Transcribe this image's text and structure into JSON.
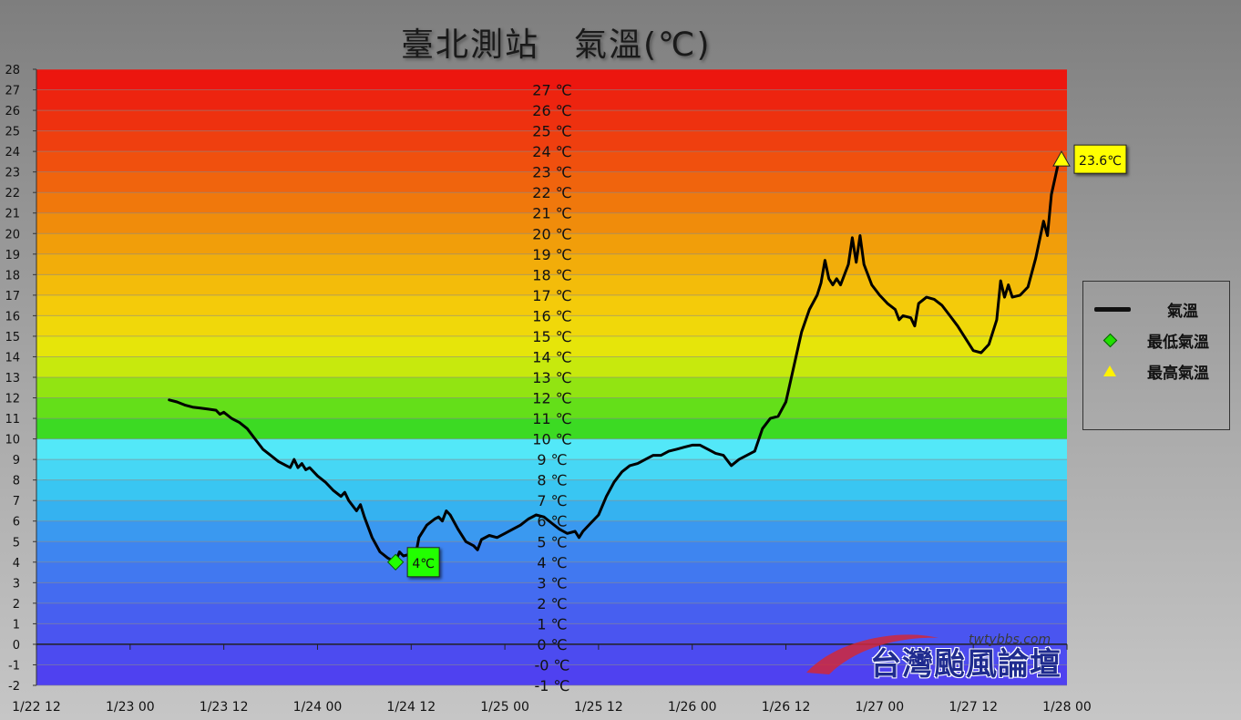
{
  "chart_data": {
    "type": "line",
    "title": "臺北測站　氣溫(℃)",
    "ylim": [
      -2,
      28
    ],
    "yticks": [
      "-2",
      "-1",
      "0",
      "1",
      "2",
      "3",
      "4",
      "5",
      "6",
      "7",
      "8",
      "9",
      "10",
      "11",
      "12",
      "13",
      "14",
      "15",
      "16",
      "17",
      "18",
      "19",
      "20",
      "21",
      "22",
      "23",
      "24",
      "25",
      "26",
      "27",
      "28"
    ],
    "band_labels": [
      "27 ℃",
      "26 ℃",
      "25 ℃",
      "24 ℃",
      "23 ℃",
      "22 ℃",
      "21 ℃",
      "20 ℃",
      "19 ℃",
      "18 ℃",
      "17 ℃",
      "16 ℃",
      "15 ℃",
      "14 ℃",
      "13 ℃",
      "12 ℃",
      "11 ℃",
      "10 ℃",
      "9 ℃",
      "8 ℃",
      "7 ℃",
      "6 ℃",
      "5 ℃",
      "4 ℃",
      "3 ℃",
      "2 ℃",
      "1 ℃",
      "0 ℃",
      "-0 ℃",
      "-1 ℃"
    ],
    "xticks": [
      "1/22 12",
      "1/23 00",
      "1/23 12",
      "1/24 00",
      "1/24 12",
      "1/25 00",
      "1/25 12",
      "1/26 00",
      "1/26 12",
      "1/27 00",
      "1/27 12",
      "1/28 00"
    ],
    "xlim_hours": [
      0,
      132
    ],
    "series": [
      {
        "name": "氣溫",
        "color": "#000000",
        "points": [
          [
            17,
            11.9
          ],
          [
            18,
            11.8
          ],
          [
            19,
            11.65
          ],
          [
            20,
            11.55
          ],
          [
            21,
            11.5
          ],
          [
            22,
            11.45
          ],
          [
            23,
            11.4
          ],
          [
            23.5,
            11.2
          ],
          [
            24,
            11.3
          ],
          [
            25,
            11.0
          ],
          [
            26,
            10.8
          ],
          [
            27,
            10.5
          ],
          [
            28,
            10.0
          ],
          [
            29,
            9.5
          ],
          [
            30,
            9.2
          ],
          [
            31,
            8.9
          ],
          [
            32,
            8.7
          ],
          [
            32.5,
            8.6
          ],
          [
            33,
            9.0
          ],
          [
            33.5,
            8.6
          ],
          [
            34,
            8.8
          ],
          [
            34.5,
            8.5
          ],
          [
            35,
            8.6
          ],
          [
            36,
            8.2
          ],
          [
            37,
            7.9
          ],
          [
            38,
            7.5
          ],
          [
            39,
            7.2
          ],
          [
            39.5,
            7.4
          ],
          [
            40,
            7.0
          ],
          [
            41,
            6.5
          ],
          [
            41.5,
            6.8
          ],
          [
            42,
            6.2
          ],
          [
            43,
            5.2
          ],
          [
            44,
            4.5
          ],
          [
            45,
            4.2
          ],
          [
            46,
            4.0
          ],
          [
            46.5,
            4.5
          ],
          [
            47,
            4.3
          ],
          [
            48,
            4.4
          ],
          [
            48.5,
            4.2
          ],
          [
            49,
            5.2
          ],
          [
            50,
            5.8
          ],
          [
            51,
            6.1
          ],
          [
            51.5,
            6.2
          ],
          [
            52,
            6.0
          ],
          [
            52.5,
            6.5
          ],
          [
            53,
            6.3
          ],
          [
            54,
            5.6
          ],
          [
            55,
            5.0
          ],
          [
            56,
            4.8
          ],
          [
            56.5,
            4.6
          ],
          [
            57,
            5.1
          ],
          [
            58,
            5.3
          ],
          [
            59,
            5.2
          ],
          [
            60,
            5.4
          ],
          [
            61,
            5.6
          ],
          [
            62,
            5.8
          ],
          [
            63,
            6.1
          ],
          [
            64,
            6.3
          ],
          [
            65,
            6.2
          ],
          [
            66,
            5.9
          ],
          [
            67,
            5.6
          ],
          [
            68,
            5.4
          ],
          [
            69,
            5.5
          ],
          [
            69.5,
            5.2
          ],
          [
            70,
            5.5
          ],
          [
            71,
            5.9
          ],
          [
            72,
            6.3
          ],
          [
            73,
            7.2
          ],
          [
            74,
            7.9
          ],
          [
            75,
            8.4
          ],
          [
            76,
            8.7
          ],
          [
            77,
            8.8
          ],
          [
            78,
            9.0
          ],
          [
            79,
            9.2
          ],
          [
            80,
            9.2
          ],
          [
            81,
            9.4
          ],
          [
            82,
            9.5
          ],
          [
            83,
            9.6
          ],
          [
            84,
            9.7
          ],
          [
            85,
            9.7
          ],
          [
            86,
            9.5
          ],
          [
            87,
            9.3
          ],
          [
            88,
            9.2
          ],
          [
            89,
            8.7
          ],
          [
            90,
            9.0
          ],
          [
            91,
            9.2
          ],
          [
            92,
            9.4
          ],
          [
            93,
            10.5
          ],
          [
            94,
            11.0
          ],
          [
            95,
            11.1
          ],
          [
            96,
            11.8
          ],
          [
            97,
            13.5
          ],
          [
            98,
            15.2
          ],
          [
            99,
            16.3
          ],
          [
            100,
            17.0
          ],
          [
            100.5,
            17.6
          ],
          [
            101,
            18.7
          ],
          [
            101.5,
            17.8
          ],
          [
            102,
            17.5
          ],
          [
            102.5,
            17.8
          ],
          [
            103,
            17.5
          ],
          [
            104,
            18.5
          ],
          [
            104.5,
            19.8
          ],
          [
            105,
            18.6
          ],
          [
            105.5,
            19.9
          ],
          [
            106,
            18.5
          ],
          [
            107,
            17.5
          ],
          [
            108,
            17.0
          ],
          [
            109,
            16.6
          ],
          [
            110,
            16.3
          ],
          [
            110.5,
            15.8
          ],
          [
            111,
            16.0
          ],
          [
            112,
            15.9
          ],
          [
            112.5,
            15.5
          ],
          [
            113,
            16.6
          ],
          [
            114,
            16.9
          ],
          [
            115,
            16.8
          ],
          [
            116,
            16.5
          ],
          [
            117,
            16.0
          ],
          [
            118,
            15.5
          ],
          [
            119,
            14.9
          ],
          [
            120,
            14.3
          ],
          [
            121,
            14.2
          ],
          [
            122,
            14.6
          ],
          [
            123,
            15.8
          ],
          [
            123.5,
            17.7
          ],
          [
            124,
            16.9
          ],
          [
            124.5,
            17.5
          ],
          [
            125,
            16.9
          ],
          [
            126,
            17.0
          ],
          [
            127,
            17.4
          ],
          [
            128,
            18.8
          ],
          [
            129,
            20.6
          ],
          [
            129.5,
            19.9
          ],
          [
            130,
            21.9
          ],
          [
            131,
            23.6
          ]
        ]
      }
    ],
    "min_marker": {
      "name": "最低氣溫",
      "x": 46,
      "y": 4.0,
      "label": "4℃",
      "color": "#22ff00"
    },
    "max_marker": {
      "name": "最高氣溫",
      "x": 131.3,
      "y": 23.6,
      "label": "23.6℃",
      "color": "#ffff00"
    },
    "legend_placement": "right"
  },
  "watermark": {
    "text": "台灣颱風論壇",
    "url": "twtybbs.com"
  }
}
